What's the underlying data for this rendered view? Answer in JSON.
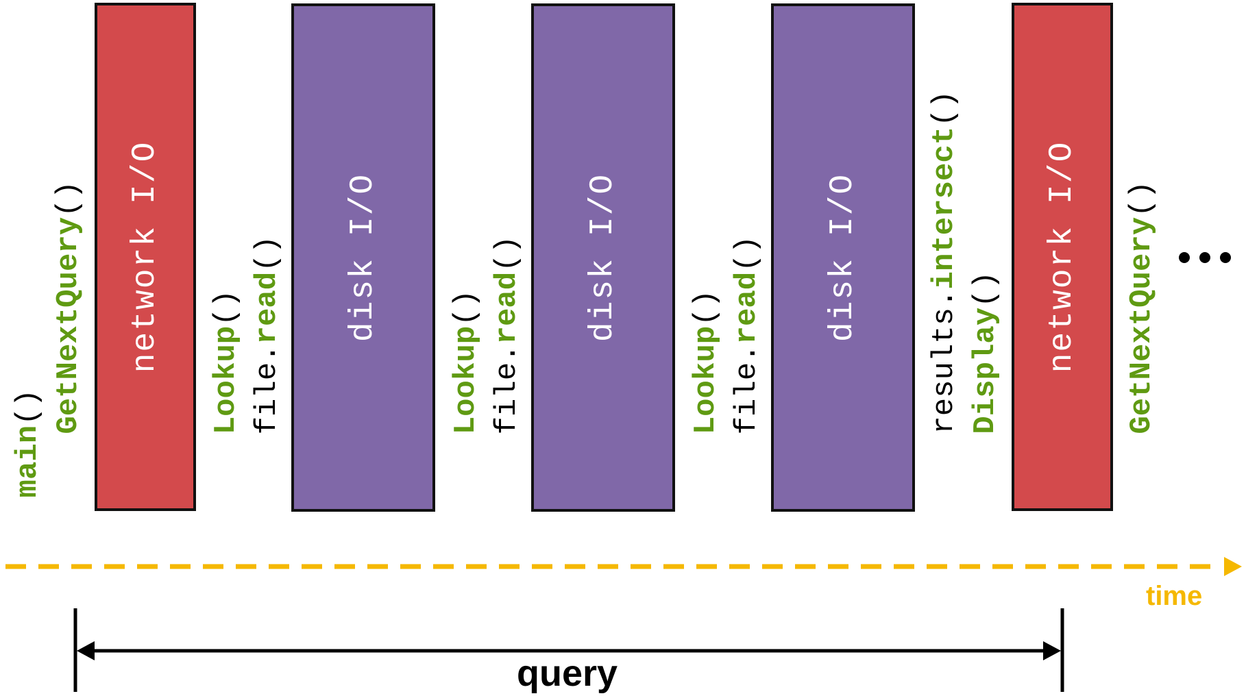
{
  "colors": {
    "network": "#d34a4c",
    "disk": "#8068a8",
    "highlight": "#5f9a12",
    "plain_text": "#000000",
    "timeline": "#f5b800",
    "border": "#111111"
  },
  "io_blocks": [
    {
      "kind": "network",
      "label": "network I/O"
    },
    {
      "kind": "disk",
      "label": "disk I/O"
    },
    {
      "kind": "disk",
      "label": "disk I/O"
    },
    {
      "kind": "disk",
      "label": "disk I/O"
    },
    {
      "kind": "network",
      "label": "network I/O"
    }
  ],
  "calls": [
    [
      {
        "lines": [
          [
            {
              "t": "main",
              "hl": true
            },
            {
              "t": "()",
              "hl": false
            }
          ]
        ]
      }
    ],
    [
      {
        "lines": [
          [
            {
              "t": "GetNextQuery",
              "hl": true
            },
            {
              "t": "()",
              "hl": false
            }
          ]
        ]
      }
    ],
    [
      {
        "lines": [
          [
            {
              "t": "Lookup",
              "hl": true
            },
            {
              "t": "()",
              "hl": false
            }
          ],
          [
            {
              "t": "file.",
              "hl": false
            },
            {
              "t": "read",
              "hl": true
            },
            {
              "t": "()",
              "hl": false
            }
          ]
        ]
      }
    ],
    [
      {
        "lines": [
          [
            {
              "t": "Lookup",
              "hl": true
            },
            {
              "t": "()",
              "hl": false
            }
          ],
          [
            {
              "t": "file.",
              "hl": false
            },
            {
              "t": "read",
              "hl": true
            },
            {
              "t": "()",
              "hl": false
            }
          ]
        ]
      }
    ],
    [
      {
        "lines": [
          [
            {
              "t": "Lookup",
              "hl": true
            },
            {
              "t": "()",
              "hl": false
            }
          ],
          [
            {
              "t": "file.",
              "hl": false
            },
            {
              "t": "read",
              "hl": true
            },
            {
              "t": "()",
              "hl": false
            }
          ]
        ]
      }
    ],
    [
      {
        "lines": [
          [
            {
              "t": "results.",
              "hl": false
            },
            {
              "t": "intersect",
              "hl": true
            },
            {
              "t": "()",
              "hl": false
            }
          ],
          [
            {
              "t": "Display",
              "hl": true
            },
            {
              "t": "()",
              "hl": false
            }
          ]
        ]
      }
    ],
    [
      {
        "lines": [
          [
            {
              "t": "GetNextQuery",
              "hl": true
            },
            {
              "t": "()",
              "hl": false
            }
          ]
        ]
      }
    ]
  ],
  "timeline": {
    "label": "time"
  },
  "span": {
    "label": "query"
  }
}
